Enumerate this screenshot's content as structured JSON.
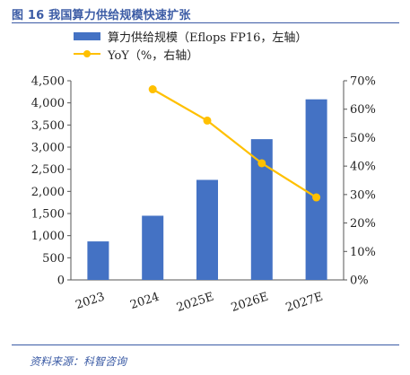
{
  "figure_title": "图 16 我国算力供给规模快速扩张",
  "source_note": "资料来源：科智咨询",
  "colors": {
    "bar": "#4472c4",
    "line": "#ffc000",
    "title": "#3b5ba5",
    "axis": "#555555"
  },
  "chart_data": {
    "type": "bar",
    "categories": [
      "2023",
      "2024",
      "2025E",
      "2026E",
      "2027E"
    ],
    "series": [
      {
        "name": "算力供给规模（Eflops FP16，左轴）",
        "type": "bar",
        "axis": "left",
        "values": [
          870,
          1450,
          2260,
          3180,
          4080
        ]
      },
      {
        "name": "YoY（%，右轴）",
        "type": "line",
        "axis": "right",
        "values": [
          null,
          67,
          56,
          41,
          29
        ]
      }
    ],
    "y_left": {
      "ylim": [
        0,
        4500
      ],
      "ticks": [
        "0",
        "500",
        "1,000",
        "1,500",
        "2,000",
        "2,500",
        "3,000",
        "3,500",
        "4,000",
        "4,500"
      ]
    },
    "y_right": {
      "ylim": [
        0,
        70
      ],
      "ticks": [
        "0%",
        "10%",
        "20%",
        "30%",
        "40%",
        "50%",
        "60%",
        "70%"
      ]
    },
    "grid": false,
    "legend_placement": "top-left"
  }
}
